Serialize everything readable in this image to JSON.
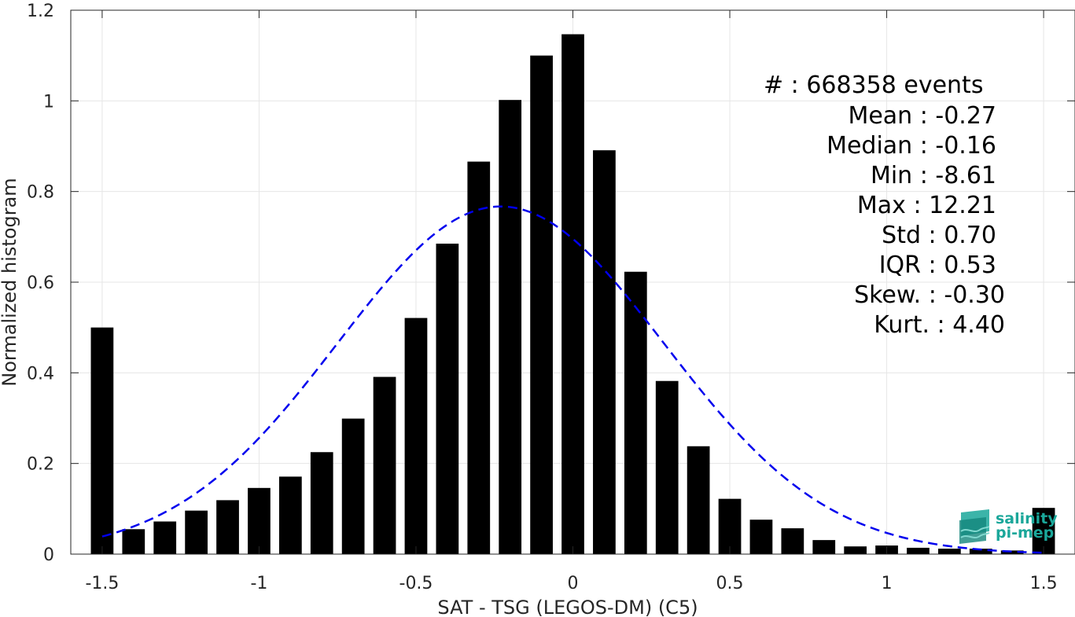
{
  "chart_data": {
    "type": "bar",
    "xlabel": "SAT - TSG (LEGOS-DM) (C5)",
    "ylabel": "Normalized histogram",
    "xlim": [
      -1.6,
      1.6
    ],
    "ylim": [
      0,
      1.2
    ],
    "grid": true,
    "xticks": [
      -1.5,
      -1,
      -0.5,
      0,
      0.5,
      1,
      1.5
    ],
    "xtick_labels": [
      "-1.5",
      "-1",
      "-0.5",
      "0",
      "0.5",
      "1",
      "1.5"
    ],
    "yticks": [
      0,
      0.2,
      0.4,
      0.6,
      0.8,
      1,
      1.2
    ],
    "ytick_labels": [
      "0",
      "0.2",
      "0.4",
      "0.6",
      "0.8",
      "1",
      "1.2"
    ],
    "bin_centers": [
      -1.5,
      -1.4,
      -1.3,
      -1.2,
      -1.1,
      -1.0,
      -0.9,
      -0.8,
      -0.7,
      -0.6,
      -0.5,
      -0.4,
      -0.3,
      -0.2,
      -0.1,
      0.0,
      0.1,
      0.2,
      0.3,
      0.4,
      0.5,
      0.6,
      0.7,
      0.8,
      0.9,
      1.0,
      1.1,
      1.2,
      1.3,
      1.4,
      1.5
    ],
    "values": [
      0.5,
      0.055,
      0.072,
      0.096,
      0.119,
      0.146,
      0.171,
      0.225,
      0.299,
      0.391,
      0.521,
      0.685,
      0.866,
      1.002,
      1.1,
      1.147,
      0.891,
      0.623,
      0.382,
      0.238,
      0.122,
      0.076,
      0.057,
      0.031,
      0.017,
      0.019,
      0.014,
      0.012,
      0.012,
      0.008,
      0.102
    ],
    "fit": {
      "type": "gaussian",
      "style": "dashed",
      "color": "#0000ee",
      "mean": -0.23,
      "std": 0.52,
      "peak": 0.767,
      "x_range": [
        -1.5,
        1.5
      ]
    },
    "bar_color": "#000000"
  },
  "stats": {
    "events": "#  : 668358 events",
    "mean": "Mean : -0.27",
    "median": "Median : -0.16",
    "min": "Min : -8.61",
    "max": "Max : 12.21",
    "std": "Std : 0.70",
    "iqr": "IQR : 0.53",
    "skew": "Skew. : -0.30",
    "kurt": "Kurt. : 4.40"
  },
  "logo": {
    "line1": "salinity",
    "line2": "pi-mep",
    "color": "#1aa79a"
  }
}
